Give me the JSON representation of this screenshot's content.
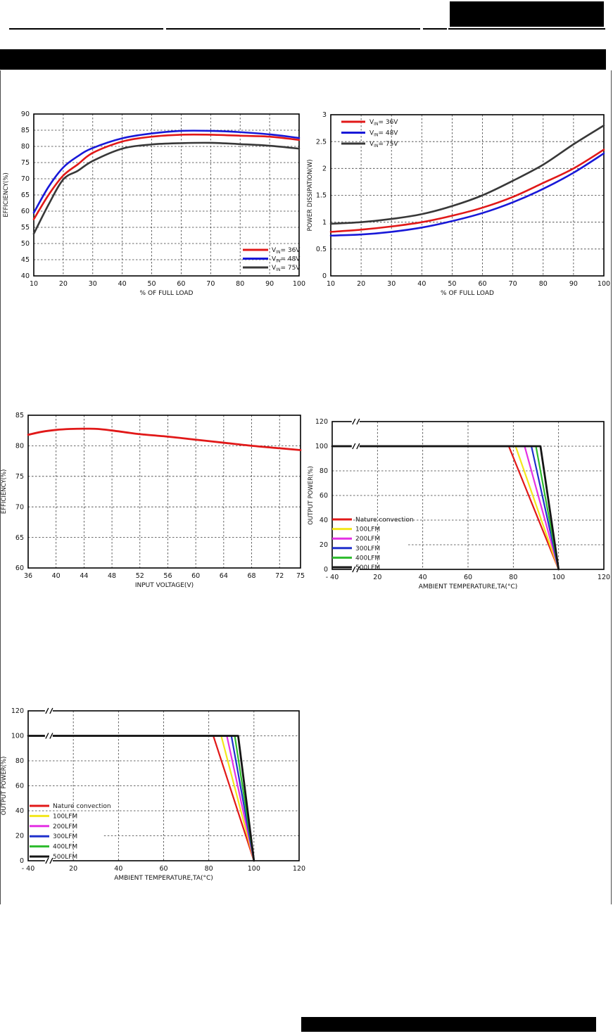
{
  "page": {
    "background": "#ffffff",
    "band_color": "#000000",
    "note": ""
  },
  "chart_data": [
    {
      "id": "efficiency-vs-load",
      "type": "line",
      "xlabel": "% OF FULL LOAD",
      "ylabel": "EFFICIENCY(%)",
      "xlim": [
        10,
        100
      ],
      "ylim": [
        40,
        90
      ],
      "grid": "dashed",
      "smooth": true,
      "xticks": {
        "values": [
          10,
          20,
          30,
          40,
          50,
          60,
          70,
          80,
          90,
          100
        ],
        "labels": [
          "10",
          "20",
          "30",
          "40",
          "50",
          "60",
          "70",
          "80",
          "90",
          "100"
        ]
      },
      "yticks": {
        "values": [
          40,
          45,
          50,
          55,
          60,
          65,
          70,
          75,
          80,
          85,
          90
        ],
        "labels": [
          "40",
          "45",
          "50",
          "55",
          "60",
          "65",
          "70",
          "75",
          "80",
          "85",
          "90"
        ]
      },
      "series": [
        {
          "name": "VIN=36V",
          "color": "#e11818",
          "lw": 2.6,
          "x": [
            10,
            15,
            20,
            25,
            30,
            40,
            50,
            60,
            70,
            80,
            90,
            100
          ],
          "y": [
            57.5,
            65,
            71,
            74.5,
            78,
            81.5,
            83,
            83.6,
            83.6,
            83.3,
            83,
            82
          ]
        },
        {
          "name": "VIN=48V",
          "color": "#1818d8",
          "lw": 2.6,
          "x": [
            10,
            15,
            20,
            25,
            30,
            40,
            50,
            60,
            70,
            80,
            90,
            100
          ],
          "y": [
            59.5,
            67.5,
            73.5,
            77,
            79.5,
            82.5,
            84,
            84.8,
            84.8,
            84.4,
            83.7,
            82.6
          ]
        },
        {
          "name": "VIN=75V",
          "color": "#383838",
          "lw": 2.6,
          "x": [
            10,
            15,
            20,
            25,
            30,
            40,
            50,
            60,
            70,
            80,
            90,
            100
          ],
          "y": [
            53,
            62,
            69.8,
            72.5,
            75.5,
            79.3,
            80.6,
            81,
            81.1,
            80.7,
            80.2,
            79.3
          ]
        }
      ],
      "legend": {
        "position": "bottom-right",
        "items": [
          {
            "pre": "V",
            "sub": "IN",
            "post": "= 36V"
          },
          {
            "pre": "V",
            "sub": "IN",
            "post": "= 48V"
          },
          {
            "pre": "V",
            "sub": "IN",
            "post": "= 75V"
          }
        ]
      }
    },
    {
      "id": "power-dissipation-vs-load",
      "type": "line",
      "xlabel": "% OF FULL LOAD",
      "ylabel": "POWER DISSIPATION(W)",
      "xlim": [
        10,
        100
      ],
      "ylim": [
        0,
        3
      ],
      "grid": "dashed",
      "smooth": true,
      "xticks": {
        "values": [
          10,
          20,
          30,
          40,
          50,
          60,
          70,
          80,
          90,
          100
        ],
        "labels": [
          "10",
          "20",
          "30",
          "40",
          "50",
          "60",
          "70",
          "80",
          "90",
          "100"
        ]
      },
      "yticks": {
        "values": [
          0,
          0.5,
          1,
          1.5,
          2,
          2.5,
          3
        ],
        "labels": [
          "0",
          "0.5",
          "1",
          "1.5",
          "2",
          "2.5",
          "3"
        ]
      },
      "series": [
        {
          "name": "VIN=36V",
          "color": "#e11818",
          "lw": 2.6,
          "x": [
            10,
            20,
            30,
            40,
            50,
            60,
            70,
            80,
            90,
            100
          ],
          "y": [
            0.82,
            0.86,
            0.92,
            1.0,
            1.12,
            1.27,
            1.47,
            1.73,
            2.0,
            2.35
          ]
        },
        {
          "name": "VIN=48V",
          "color": "#1818d8",
          "lw": 2.6,
          "x": [
            10,
            20,
            30,
            40,
            50,
            60,
            70,
            80,
            90,
            100
          ],
          "y": [
            0.75,
            0.77,
            0.82,
            0.9,
            1.02,
            1.17,
            1.37,
            1.62,
            1.92,
            2.28
          ]
        },
        {
          "name": "VIN=75V",
          "color": "#383838",
          "lw": 2.6,
          "x": [
            10,
            20,
            30,
            40,
            50,
            60,
            70,
            80,
            90,
            100
          ],
          "y": [
            0.97,
            1.0,
            1.06,
            1.15,
            1.3,
            1.5,
            1.77,
            2.07,
            2.45,
            2.8
          ]
        }
      ],
      "legend": {
        "position": "top-left",
        "items": [
          {
            "pre": "V",
            "sub": "IN",
            "post": "= 36V"
          },
          {
            "pre": "V",
            "sub": "IN",
            "post": "= 48V"
          },
          {
            "pre": "V",
            "sub": "IN",
            "post": "= 75V"
          }
        ]
      }
    },
    {
      "id": "efficiency-vs-input-voltage",
      "type": "line",
      "xlabel": "INPUT VOLTAGE(V)",
      "ylabel": "EFFICIENCY(%)",
      "xlim": [
        36,
        75
      ],
      "ylim": [
        60,
        85
      ],
      "grid": "dashed",
      "smooth": true,
      "xticks": {
        "values": [
          36,
          40,
          44,
          48,
          52,
          56,
          60,
          64,
          68,
          72,
          75
        ],
        "labels": [
          "36",
          "40",
          "44",
          "48",
          "52",
          "56",
          "60",
          "64",
          "68",
          "72",
          "75"
        ]
      },
      "yticks": {
        "values": [
          60,
          65,
          70,
          75,
          80,
          85
        ],
        "labels": [
          "60",
          "65",
          "70",
          "75",
          "80",
          "85"
        ]
      },
      "series": [
        {
          "name": "Efficiency",
          "color": "#e11818",
          "lw": 2.8,
          "x": [
            36,
            38,
            40,
            42,
            44,
            46,
            48,
            50,
            52,
            56,
            60,
            64,
            68,
            72,
            75
          ],
          "y": [
            81.8,
            82.3,
            82.6,
            82.75,
            82.8,
            82.75,
            82.5,
            82.2,
            81.9,
            81.5,
            81.0,
            80.5,
            80.0,
            79.6,
            79.3
          ]
        }
      ],
      "legend": null
    },
    {
      "id": "derating-curve-a",
      "type": "line",
      "xlabel": "AMBIENT TEMPERATURE,TA(°C)",
      "ylabel": "OUTPUT POWER(%)",
      "xlim": [
        0,
        120
      ],
      "ylim": [
        0,
        120
      ],
      "grid": "dashed",
      "smooth": false,
      "axis_break": {
        "left_value": -40,
        "left_pos": 0
      },
      "partial_y_grid": {
        "20": 0.28
      },
      "xticks": {
        "values": [
          -40,
          20,
          40,
          60,
          80,
          100,
          120
        ],
        "labels": [
          "- 40",
          "20",
          "40",
          "60",
          "80",
          "100",
          "120"
        ]
      },
      "yticks": {
        "values": [
          0,
          20,
          40,
          60,
          80,
          100,
          120
        ],
        "labels": [
          "0",
          "20",
          "40",
          "60",
          "80",
          "100",
          "120"
        ]
      },
      "series": [
        {
          "name": "Nature convection",
          "color": "#e11818",
          "lw": 2.2,
          "x": [
            -40,
            78,
            100
          ],
          "y": [
            100,
            100,
            0
          ]
        },
        {
          "name": "100LFM",
          "color": "#f3e71c",
          "lw": 2.2,
          "x": [
            -40,
            81,
            100
          ],
          "y": [
            100,
            100,
            0
          ]
        },
        {
          "name": "200LFM",
          "color": "#e431e4",
          "lw": 2.2,
          "x": [
            -40,
            85,
            100
          ],
          "y": [
            100,
            100,
            0
          ]
        },
        {
          "name": "300LFM",
          "color": "#2030cc",
          "lw": 2.2,
          "x": [
            -40,
            88,
            100
          ],
          "y": [
            100,
            100,
            0
          ]
        },
        {
          "name": "400LFM",
          "color": "#2dbb2d",
          "lw": 2.2,
          "x": [
            -40,
            90,
            100
          ],
          "y": [
            100,
            100,
            0
          ]
        },
        {
          "name": "500LFM",
          "color": "#151515",
          "lw": 2.8,
          "x": [
            -40,
            92,
            100
          ],
          "y": [
            100,
            100,
            0
          ]
        }
      ],
      "legend": {
        "position": "left-middle",
        "items": [
          {
            "label": "Nature convection"
          },
          {
            "label": "100LFM"
          },
          {
            "label": "200LFM"
          },
          {
            "label": "300LFM"
          },
          {
            "label": "400LFM"
          },
          {
            "label": "500LFM"
          }
        ]
      }
    },
    {
      "id": "derating-curve-b",
      "type": "line",
      "xlabel": "AMBIENT TEMPERATURE,TA(°C)",
      "ylabel": "OUTPUT POWER(%)",
      "xlim": [
        0,
        120
      ],
      "ylim": [
        0,
        120
      ],
      "grid": "dashed",
      "smooth": false,
      "axis_break": {
        "left_value": -40,
        "left_pos": 0
      },
      "partial_y_grid": {
        "20": 0.28
      },
      "xticks": {
        "values": [
          -40,
          20,
          40,
          60,
          80,
          100,
          120
        ],
        "labels": [
          "- 40",
          "20",
          "40",
          "60",
          "80",
          "100",
          "120"
        ]
      },
      "yticks": {
        "values": [
          0,
          20,
          40,
          60,
          80,
          100,
          120
        ],
        "labels": [
          "0",
          "20",
          "40",
          "60",
          "80",
          "100",
          "120"
        ]
      },
      "series": [
        {
          "name": "Nature convection",
          "color": "#e11818",
          "lw": 2.2,
          "x": [
            -40,
            82,
            100
          ],
          "y": [
            100,
            100,
            0
          ]
        },
        {
          "name": "100LFM",
          "color": "#f3e71c",
          "lw": 2.2,
          "x": [
            -40,
            85.5,
            100
          ],
          "y": [
            100,
            100,
            0
          ]
        },
        {
          "name": "200LFM",
          "color": "#e431e4",
          "lw": 2.2,
          "x": [
            -40,
            88,
            100
          ],
          "y": [
            100,
            100,
            0
          ]
        },
        {
          "name": "300LFM",
          "color": "#2030cc",
          "lw": 2.2,
          "x": [
            -40,
            90,
            100
          ],
          "y": [
            100,
            100,
            0
          ]
        },
        {
          "name": "400LFM",
          "color": "#2dbb2d",
          "lw": 2.2,
          "x": [
            -40,
            91.5,
            100
          ],
          "y": [
            100,
            100,
            0
          ]
        },
        {
          "name": "500LFM",
          "color": "#151515",
          "lw": 2.8,
          "x": [
            -40,
            93,
            100
          ],
          "y": [
            100,
            100,
            0
          ]
        }
      ],
      "legend": {
        "position": "left-middle",
        "items": [
          {
            "label": "Nature convection"
          },
          {
            "label": "100LFM"
          },
          {
            "label": "200LFM"
          },
          {
            "label": "300LFM"
          },
          {
            "label": "400LFM"
          },
          {
            "label": "500LFM"
          }
        ]
      }
    }
  ]
}
